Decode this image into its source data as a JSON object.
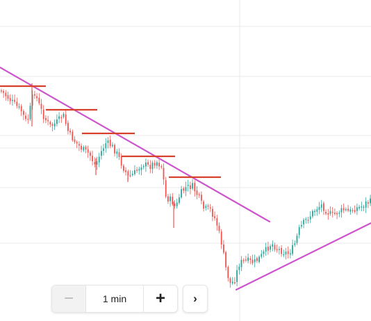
{
  "toolbar": {
    "minus_label": "−",
    "interval_label": "1 min",
    "plus_label": "+",
    "next_label": "›"
  },
  "colors": {
    "up": "#26a69a",
    "down": "#ef5350",
    "trendline": "#cc55cc",
    "resistance": "#d7402b",
    "grid": "#e9e9e9"
  },
  "icons": [
    "minus-icon",
    "plus-icon",
    "chevron-right-icon"
  ]
}
